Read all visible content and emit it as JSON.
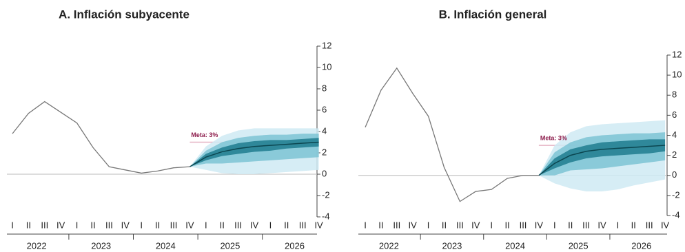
{
  "chart_data": [
    {
      "type": "fan",
      "title": "A. Inflación subyacente",
      "categories": [
        "I",
        "II",
        "III",
        "IV",
        "I",
        "II",
        "III",
        "IV",
        "I",
        "II",
        "III",
        "IV",
        "I",
        "II",
        "III",
        "IV",
        "I",
        "II",
        "III",
        "IV"
      ],
      "years": [
        "2022",
        "2023",
        "2024",
        "2025",
        "2026"
      ],
      "ylim": [
        -4,
        12
      ],
      "yticks": [
        -4,
        -2,
        0,
        2,
        4,
        6,
        8,
        10,
        12
      ],
      "line": {
        "color": "#777777",
        "values": [
          3.8,
          5.7,
          6.8,
          5.8,
          4.8,
          2.5,
          0.7,
          0.4,
          0.1,
          0.3,
          0.6,
          0.7,
          null,
          null,
          null,
          null,
          null,
          null,
          null,
          null
        ]
      },
      "central": {
        "color": "#0b4650",
        "values": [
          null,
          null,
          null,
          null,
          null,
          null,
          null,
          null,
          null,
          null,
          null,
          0.7,
          1.6,
          2.1,
          2.4,
          2.6,
          2.7,
          2.8,
          2.9,
          3.0
        ]
      },
      "bands": [
        {
          "color": "#cfeaf3",
          "upper": [
            null,
            null,
            null,
            null,
            null,
            null,
            null,
            null,
            null,
            null,
            null,
            0.7,
            2.6,
            3.6,
            4.1,
            4.3,
            4.3,
            4.3,
            4.3,
            4.3
          ],
          "lower": [
            null,
            null,
            null,
            null,
            null,
            null,
            null,
            null,
            null,
            null,
            null,
            0.7,
            0.4,
            0.1,
            0.0,
            0.0,
            0.1,
            0.2,
            0.3,
            0.4
          ]
        },
        {
          "color": "#7cc3d4",
          "upper": [
            null,
            null,
            null,
            null,
            null,
            null,
            null,
            null,
            null,
            null,
            null,
            0.7,
            2.2,
            3.0,
            3.4,
            3.6,
            3.7,
            3.7,
            3.8,
            3.8
          ],
          "lower": [
            null,
            null,
            null,
            null,
            null,
            null,
            null,
            null,
            null,
            null,
            null,
            0.7,
            1.0,
            1.0,
            1.1,
            1.2,
            1.3,
            1.4,
            1.5,
            1.6
          ]
        },
        {
          "color": "#1f7d8e",
          "upper": [
            null,
            null,
            null,
            null,
            null,
            null,
            null,
            null,
            null,
            null,
            null,
            0.7,
            1.9,
            2.5,
            2.9,
            3.1,
            3.2,
            3.2,
            3.3,
            3.4
          ],
          "lower": [
            null,
            null,
            null,
            null,
            null,
            null,
            null,
            null,
            null,
            null,
            null,
            0.7,
            1.3,
            1.7,
            1.9,
            2.1,
            2.2,
            2.4,
            2.5,
            2.6
          ]
        }
      ],
      "meta": {
        "value": 3,
        "label": "Meta: 3%",
        "color": "#8b1a4a",
        "line_color": "#e6b3c4"
      }
    },
    {
      "type": "fan",
      "title": "B. Inflación general",
      "categories": [
        "I",
        "II",
        "III",
        "IV",
        "I",
        "II",
        "III",
        "IV",
        "I",
        "II",
        "III",
        "IV",
        "I",
        "II",
        "III",
        "IV",
        "I",
        "II",
        "III",
        "IV"
      ],
      "years": [
        "2022",
        "2023",
        "2024",
        "2025",
        "2026"
      ],
      "ylim": [
        -4,
        12
      ],
      "yticks": [
        -4,
        -2,
        0,
        2,
        4,
        6,
        8,
        10,
        12
      ],
      "line": {
        "color": "#777777",
        "values": [
          4.8,
          8.5,
          10.7,
          8.2,
          5.9,
          0.8,
          -2.6,
          -1.6,
          -1.4,
          -0.3,
          0.0,
          0.0,
          null,
          null,
          null,
          null,
          null,
          null,
          null,
          null
        ]
      },
      "central": {
        "color": "#0b4650",
        "values": [
          null,
          null,
          null,
          null,
          null,
          null,
          null,
          null,
          null,
          null,
          null,
          0.0,
          1.2,
          2.0,
          2.4,
          2.6,
          2.7,
          2.8,
          2.9,
          3.0
        ]
      },
      "bands": [
        {
          "color": "#cfeaf3",
          "upper": [
            null,
            null,
            null,
            null,
            null,
            null,
            null,
            null,
            null,
            null,
            null,
            0.0,
            3.0,
            4.3,
            4.9,
            5.1,
            5.2,
            5.3,
            5.4,
            5.5
          ],
          "lower": [
            null,
            null,
            null,
            null,
            null,
            null,
            null,
            null,
            null,
            null,
            null,
            0.0,
            -0.8,
            -1.3,
            -1.6,
            -1.6,
            -1.4,
            -1.0,
            -0.7,
            -0.4
          ]
        },
        {
          "color": "#7cc3d4",
          "upper": [
            null,
            null,
            null,
            null,
            null,
            null,
            null,
            null,
            null,
            null,
            null,
            0.0,
            2.3,
            3.3,
            3.8,
            4.0,
            4.1,
            4.2,
            4.2,
            4.3
          ],
          "lower": [
            null,
            null,
            null,
            null,
            null,
            null,
            null,
            null,
            null,
            null,
            null,
            0.0,
            0.0,
            0.5,
            0.6,
            0.7,
            0.9,
            1.1,
            1.3,
            1.5
          ]
        },
        {
          "color": "#1f7d8e",
          "upper": [
            null,
            null,
            null,
            null,
            null,
            null,
            null,
            null,
            null,
            null,
            null,
            0.0,
            1.7,
            2.6,
            3.0,
            3.3,
            3.4,
            3.5,
            3.6,
            3.6
          ],
          "lower": [
            null,
            null,
            null,
            null,
            null,
            null,
            null,
            null,
            null,
            null,
            null,
            0.0,
            0.7,
            1.3,
            1.7,
            1.9,
            2.0,
            2.1,
            2.2,
            2.4
          ]
        }
      ],
      "meta": {
        "value": 3,
        "label": "Meta: 3%",
        "color": "#8b1a4a",
        "line_color": "#e6b3c4"
      }
    }
  ]
}
